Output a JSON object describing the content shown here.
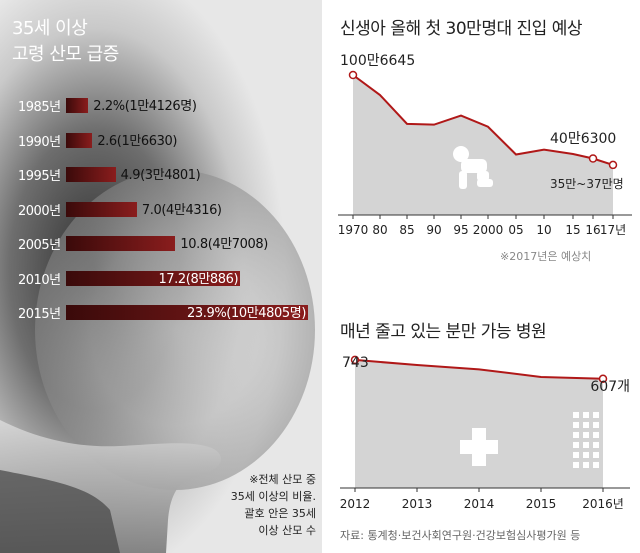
{
  "left": {
    "title_line1": "35세 이상",
    "title_line2": "고령 산모 급증",
    "footnote": [
      "※전체 산모 중",
      "35세 이상의 비율.",
      "괄호 안은 35세",
      "이상 산모 수"
    ]
  },
  "top_right": {
    "title": "신생아 올해 첫 30만명대 진입 예상",
    "note": "※2017년은 예상치"
  },
  "bottom_right": {
    "title": "매년 줄고 있는 분만 가능 병원"
  },
  "source": "자료: 통계청·보건사회연구원·건강보험심사평가원 등",
  "colors": {
    "accent": "#b01818",
    "area": "#d4d4d4",
    "bar": "#7a1a1a"
  },
  "chart_data": [
    {
      "type": "bar",
      "orientation": "horizontal",
      "categories": [
        "1985년",
        "1990년",
        "1995년",
        "2000년",
        "2005년",
        "2010년",
        "2015년"
      ],
      "values": [
        2.2,
        2.6,
        4.9,
        7.0,
        10.8,
        17.2,
        23.9
      ],
      "data_labels": [
        "2.2%(1만4126명)",
        "2.6(1만6630)",
        "4.9(3만4801)",
        "7.0(4만4316)",
        "10.8(4만7008)",
        "17.2(8만886)",
        "23.9%(10만4805명)"
      ]
    },
    {
      "type": "area",
      "x_labels": [
        "1970",
        "80",
        "85",
        "90",
        "95",
        "2000",
        "05",
        "10",
        "15",
        "16",
        "17년"
      ],
      "x": [
        1970,
        1980,
        1985,
        1990,
        1995,
        2000,
        2005,
        2010,
        2015,
        2016,
        2017
      ],
      "y": [
        1006645,
        862669,
        655489,
        649738,
        715020,
        634501,
        435031,
        470171,
        438420,
        406300,
        360000
      ],
      "annotations": {
        "first": "100만6645",
        "2016": "40만6300",
        "2017": "35만~37만명"
      },
      "projected_from": 2017
    },
    {
      "type": "area",
      "x_labels": [
        "2012",
        "2013",
        "2014",
        "2015",
        "2016년"
      ],
      "x": [
        2012,
        2013,
        2014,
        2015,
        2016
      ],
      "y": [
        743,
        706,
        675,
        620,
        607
      ],
      "unit": "개",
      "annotations": {
        "first": "743",
        "last": "607개"
      }
    }
  ]
}
